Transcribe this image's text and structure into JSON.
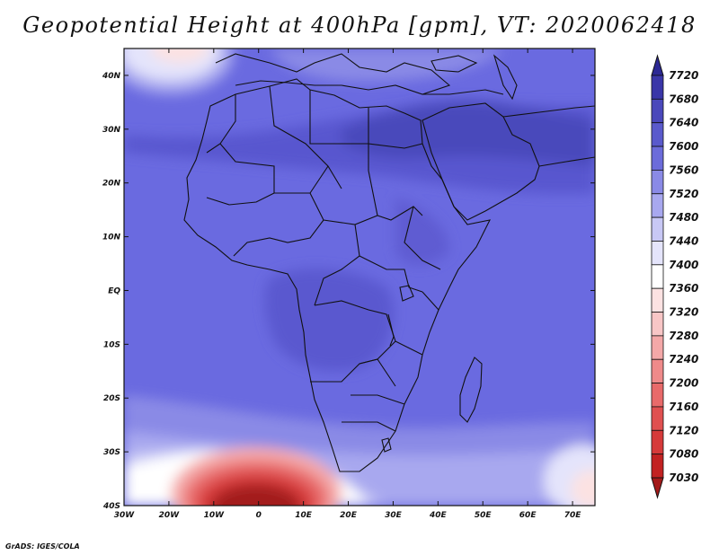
{
  "title": "Geopotential Height at 400hPa [gpm], VT: 2020062418",
  "credit": "GrADS: IGES/COLA",
  "map": {
    "lon_range": [
      -30,
      75
    ],
    "lat_range": [
      -40,
      45
    ],
    "lon_ticks": [
      "30W",
      "20W",
      "10W",
      "0",
      "10E",
      "20E",
      "30E",
      "40E",
      "50E",
      "60E",
      "70E"
    ],
    "lat_ticks": [
      "40S",
      "30S",
      "20S",
      "10S",
      "EQ",
      "10N",
      "20N",
      "30N",
      "40N"
    ]
  },
  "colorbar": {
    "labels": [
      "7030",
      "7080",
      "7120",
      "7160",
      "7200",
      "7240",
      "7280",
      "7320",
      "7360",
      "7400",
      "7440",
      "7480",
      "7520",
      "7560",
      "7600",
      "7640",
      "7680",
      "7720"
    ],
    "colors": [
      "#a31a1a",
      "#c22222",
      "#d63a3a",
      "#e05050",
      "#e86a6a",
      "#ef8a8a",
      "#f4a8a8",
      "#f8c6c6",
      "#fce2e2",
      "#ffffff",
      "#e4e4fb",
      "#c8c8f5",
      "#a8a8ef",
      "#8a8ae6",
      "#6c6cda",
      "#5a5acc",
      "#4a48bb",
      "#3a36a8",
      "#2c2894"
    ]
  }
}
